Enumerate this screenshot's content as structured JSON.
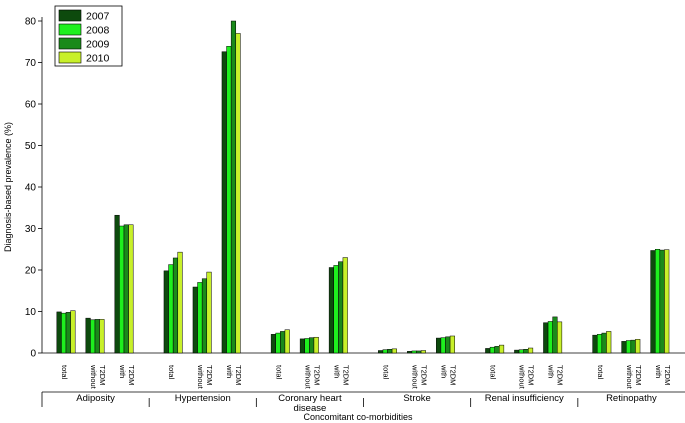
{
  "chart_data": {
    "type": "bar",
    "title": "",
    "ylabel": "Diagnosis-based prevalence (%)",
    "xlabel": "Concomitant co-morbidities",
    "ylim": [
      0,
      80
    ],
    "yticks": [
      0,
      10,
      20,
      30,
      40,
      50,
      60,
      70,
      80
    ],
    "legend_position": "top-left",
    "legend": [
      "2007",
      "2008",
      "2009",
      "2010"
    ],
    "colors": [
      "#0d4a0d",
      "#1ef01e",
      "#1a8a1a",
      "#c8f02a"
    ],
    "groups": [
      {
        "name": "Adiposity",
        "subgroups": [
          {
            "label_lines": [
              "total"
            ],
            "values": [
              9.9,
              9.6,
              9.8,
              10.2
            ]
          },
          {
            "label_lines": [
              "without",
              "T2DM"
            ],
            "values": [
              8.4,
              8.0,
              8.1,
              8.1
            ]
          },
          {
            "label_lines": [
              "with",
              "T2DM"
            ],
            "values": [
              33.2,
              30.6,
              30.9,
              30.9
            ]
          }
        ]
      },
      {
        "name": "Hypertension",
        "subgroups": [
          {
            "label_lines": [
              "total"
            ],
            "values": [
              19.8,
              21.3,
              22.9,
              24.3
            ]
          },
          {
            "label_lines": [
              "without",
              "T2DM"
            ],
            "values": [
              15.9,
              17.0,
              17.9,
              19.5
            ]
          },
          {
            "label_lines": [
              "with",
              "T2DM"
            ],
            "values": [
              72.6,
              73.9,
              80.0,
              77.0
            ]
          }
        ]
      },
      {
        "name": "Coronary heart disease",
        "name_lines": [
          "Coronary heart",
          "disease"
        ],
        "subgroups": [
          {
            "label_lines": [
              "total"
            ],
            "values": [
              4.5,
              4.8,
              5.2,
              5.6
            ]
          },
          {
            "label_lines": [
              "without",
              "T2DM"
            ],
            "values": [
              3.4,
              3.5,
              3.7,
              3.8
            ]
          },
          {
            "label_lines": [
              "with",
              "T2DM"
            ],
            "values": [
              20.6,
              21.1,
              22.0,
              23.0
            ]
          }
        ]
      },
      {
        "name": "Stroke",
        "subgroups": [
          {
            "label_lines": [
              "total"
            ],
            "values": [
              0.6,
              0.8,
              0.9,
              1.0
            ]
          },
          {
            "label_lines": [
              "without",
              "T2DM"
            ],
            "values": [
              0.4,
              0.5,
              0.5,
              0.6
            ]
          },
          {
            "label_lines": [
              "with",
              "T2DM"
            ],
            "values": [
              3.6,
              3.7,
              3.9,
              4.1
            ]
          }
        ]
      },
      {
        "name": "Renal insufficiency",
        "subgroups": [
          {
            "label_lines": [
              "total"
            ],
            "values": [
              1.1,
              1.4,
              1.6,
              1.9
            ]
          },
          {
            "label_lines": [
              "without",
              "T2DM"
            ],
            "values": [
              0.7,
              0.8,
              0.9,
              1.2
            ]
          },
          {
            "label_lines": [
              "with",
              "T2DM"
            ],
            "values": [
              7.3,
              7.6,
              8.7,
              7.5
            ]
          }
        ]
      },
      {
        "name": "Retinopathy",
        "subgroups": [
          {
            "label_lines": [
              "total"
            ],
            "values": [
              4.3,
              4.5,
              4.8,
              5.2
            ]
          },
          {
            "label_lines": [
              "without",
              "T2DM"
            ],
            "values": [
              2.8,
              3.0,
              3.1,
              3.3
            ]
          },
          {
            "label_lines": [
              "with",
              "T2DM"
            ],
            "values": [
              24.7,
              25.0,
              24.8,
              24.9
            ]
          }
        ]
      }
    ]
  }
}
